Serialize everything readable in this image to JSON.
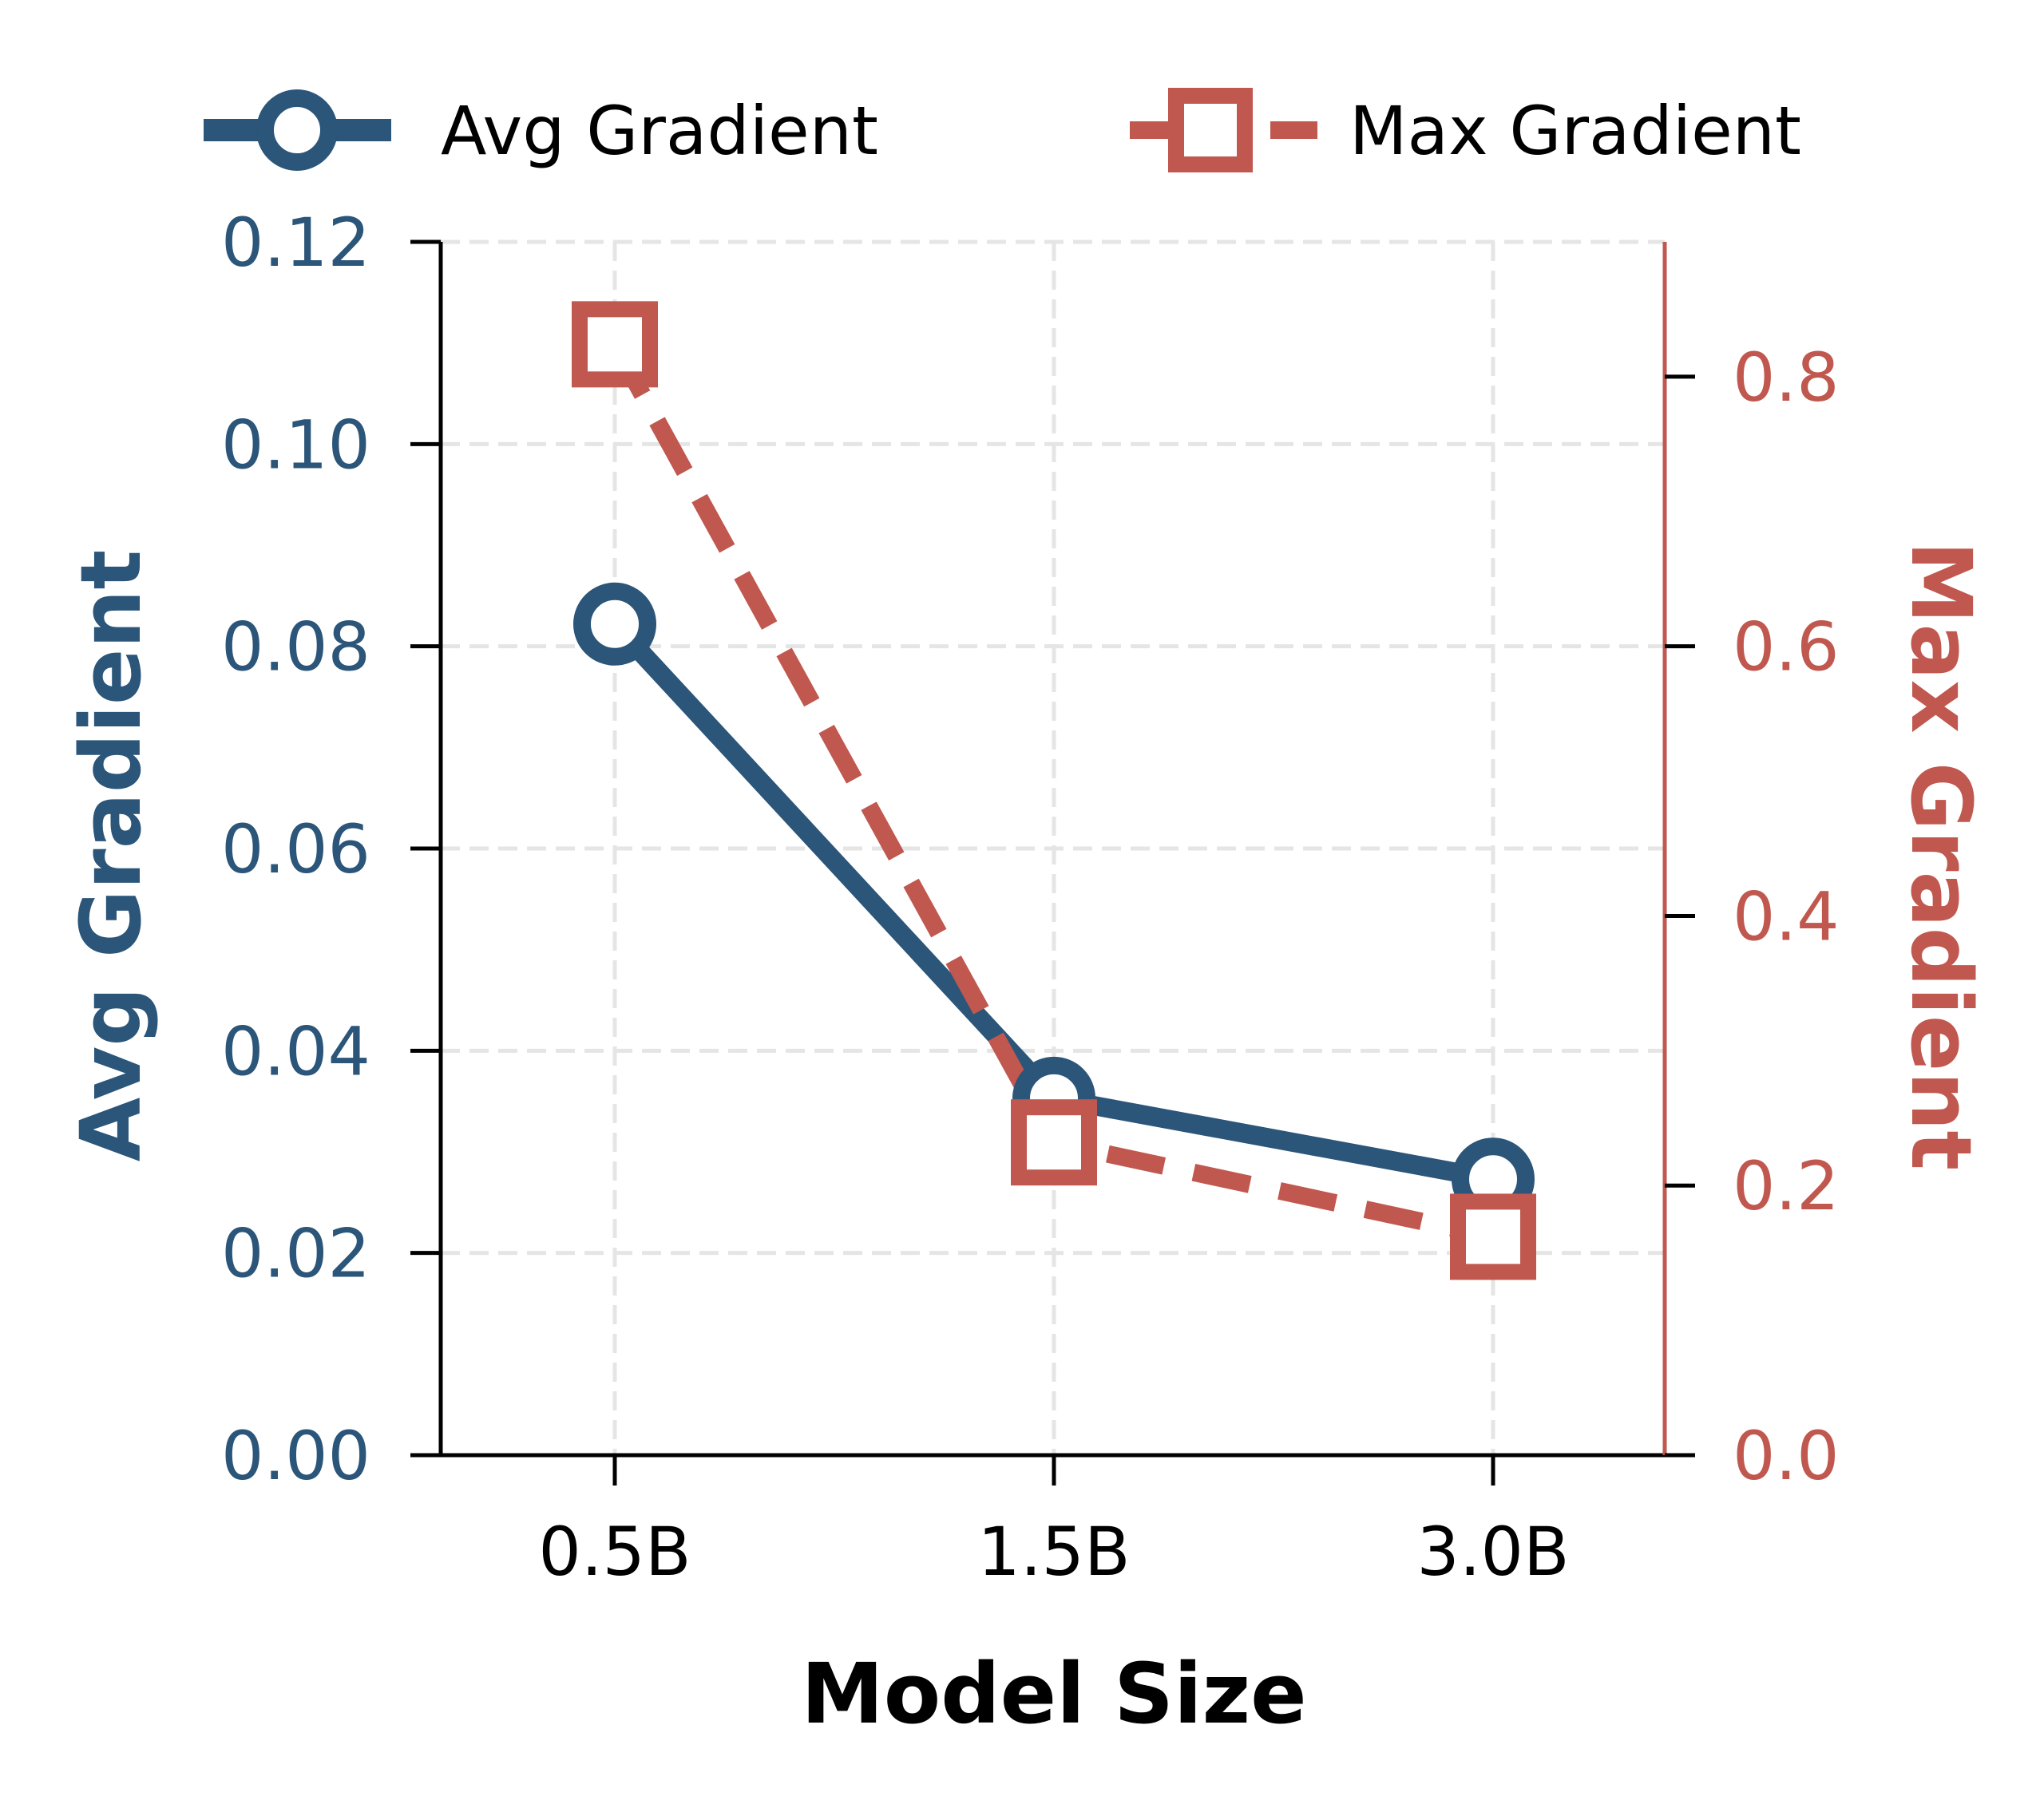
{
  "chart_data": {
    "type": "line",
    "categories": [
      "0.5B",
      "1.5B",
      "3.0B"
    ],
    "xlabel": "Model Size",
    "y_left_label": "Avg Gradient",
    "y_right_label": "Max Gradient",
    "y_left_lim": [
      0,
      0.12
    ],
    "y_right_lim": [
      0,
      0.9
    ],
    "y_left_ticks": [
      "0.00",
      "0.02",
      "0.04",
      "0.06",
      "0.08",
      "0.10",
      "0.12"
    ],
    "y_right_ticks": [
      "0.0",
      "0.2",
      "0.4",
      "0.6",
      "0.8"
    ],
    "grid": true,
    "legend_position": "top",
    "series": [
      {
        "name": "Avg Gradient",
        "axis": "left",
        "values": [
          0.0822,
          0.0353,
          0.0273
        ],
        "color": "#2b5579",
        "marker": "circle",
        "linestyle": "solid"
      },
      {
        "name": "Max Gradient",
        "axis": "right",
        "values": [
          0.824,
          0.232,
          0.162
        ],
        "color": "#c0584f",
        "marker": "square",
        "linestyle": "dashed"
      }
    ]
  }
}
